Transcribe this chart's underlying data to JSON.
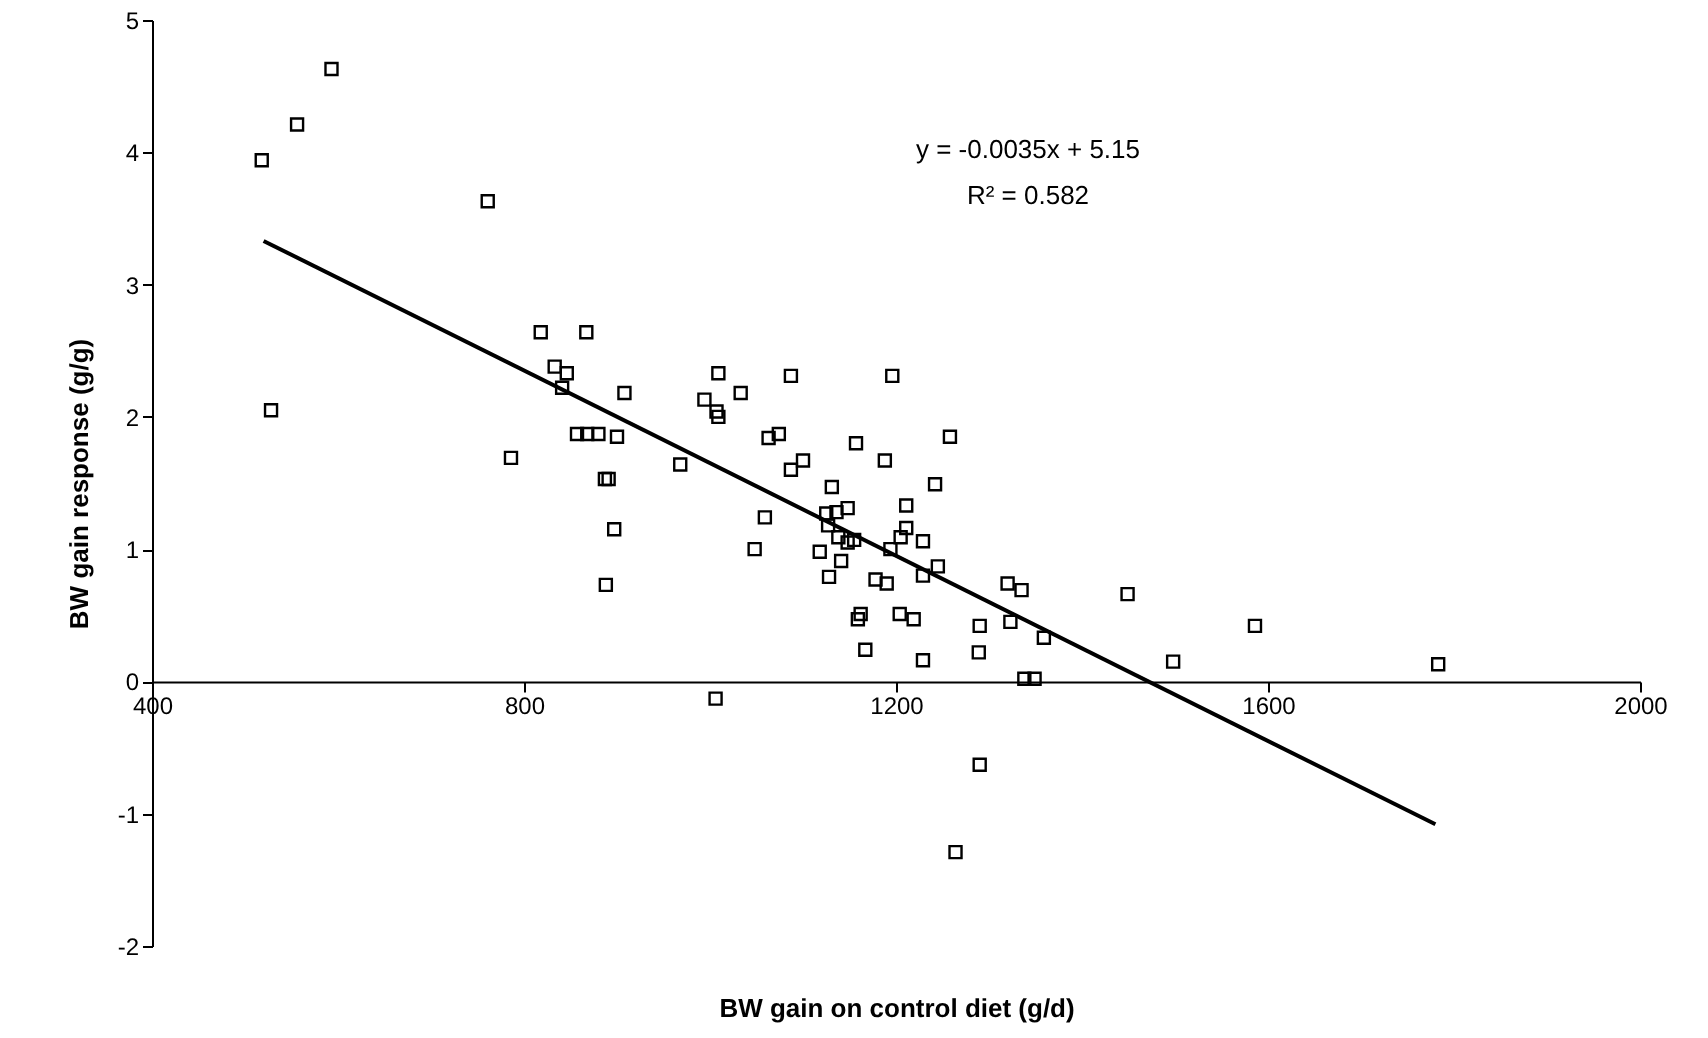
{
  "chart_data": {
    "type": "scatter",
    "xlabel": "BW gain on control diet (g/d)",
    "ylabel": "BW gain response (g/g)",
    "xlim": [
      400,
      2000
    ],
    "xticks": [
      400,
      800,
      1200,
      1600,
      2000
    ],
    "ylim": [
      -2,
      5
    ],
    "yticks": [
      -2,
      -1,
      0,
      1,
      2,
      3,
      4,
      5
    ],
    "marker": "square",
    "annotations": [
      "y = -0.0035x + 5.15",
      "R² = 0.582"
    ],
    "series": [
      {
        "color": "#000000",
        "x": [
          593,
          556,
          518,
          761,
          818,
          867,
          833,
          846,
          841,
          908,
          528,
          786,
          857,
          868,
          880,
          900,
          887,
          891,
          897,
          888,
          968,
          1009,
          1033,
          1087,
          1196,
          994,
          1007,
          1009,
          1063,
          1074,
          1157,
          1188,
          1087,
          1100,
          1059,
          1048,
          1131,
          1125,
          1136,
          1148,
          1127,
          1138,
          1148,
          1155,
          1118,
          1141,
          1128,
          1178,
          1190,
          1162,
          1159,
          1167,
          1006,
          1258,
          1242,
          1211,
          1211,
          1205,
          1229,
          1194,
          1245,
          1229,
          1320,
          1335,
          1449,
          1204,
          1219,
          1290,
          1323,
          1359,
          1229,
          1289,
          1338,
          1349,
          1498,
          1290,
          1264,
          1586,
          1783
        ],
        "values": [
          4.63,
          4.21,
          3.94,
          3.63,
          2.64,
          2.64,
          2.38,
          2.33,
          2.22,
          2.18,
          2.05,
          1.69,
          1.87,
          1.87,
          1.87,
          1.85,
          1.53,
          1.53,
          1.15,
          0.73,
          1.64,
          2.33,
          2.18,
          2.31,
          2.31,
          2.13,
          2.04,
          2.0,
          1.84,
          1.87,
          1.8,
          1.67,
          1.6,
          1.67,
          1.24,
          1.0,
          1.47,
          1.27,
          1.28,
          1.31,
          1.18,
          1.09,
          1.05,
          1.07,
          0.98,
          0.91,
          0.79,
          0.77,
          0.74,
          0.51,
          0.47,
          0.24,
          -0.13,
          1.85,
          1.49,
          1.33,
          1.16,
          1.09,
          1.06,
          1.0,
          0.87,
          0.8,
          0.74,
          0.69,
          0.66,
          0.51,
          0.47,
          0.42,
          0.45,
          0.33,
          0.16,
          0.22,
          0.02,
          0.02,
          0.15,
          -0.63,
          -1.29,
          0.42,
          0.13
        ]
      },
      {
        "type": "line",
        "color": "#000000",
        "line_style": "solid",
        "marker": "none",
        "x": [
          520,
          1780
        ],
        "values": [
          3.33,
          -1.08
        ]
      }
    ]
  }
}
